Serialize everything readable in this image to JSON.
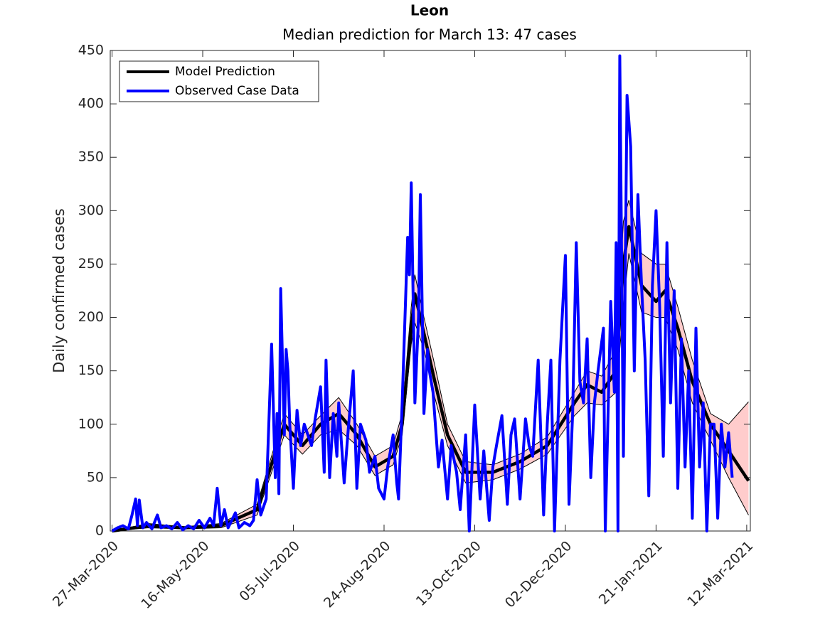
{
  "chart_data": {
    "type": "line",
    "title": "Leon",
    "subtitle": "Median prediction for March 13: 47 cases",
    "ylabel": "Daily confirmed cases",
    "xlim": [
      "2020-03-26",
      "2021-03-14"
    ],
    "xticks": [
      {
        "value": "2020-03-27",
        "label": "27-Mar-2020"
      },
      {
        "value": "2020-05-16",
        "label": "16-May-2020"
      },
      {
        "value": "2020-07-05",
        "label": "05-Jul-2020"
      },
      {
        "value": "2020-08-24",
        "label": "24-Aug-2020"
      },
      {
        "value": "2020-10-13",
        "label": "13-Oct-2020"
      },
      {
        "value": "2020-12-02",
        "label": "02-Dec-2020"
      },
      {
        "value": "2021-01-21",
        "label": "21-Jan-2021"
      },
      {
        "value": "2021-03-12",
        "label": "12-Mar-2021"
      }
    ],
    "ylim": [
      0,
      450
    ],
    "yticks": [
      0,
      50,
      100,
      150,
      200,
      250,
      300,
      350,
      400,
      450
    ],
    "legend": "upper left",
    "band_color": "#ffcccc",
    "series": [
      {
        "name": "Model Prediction",
        "color": "#000000",
        "x": [
          "2020-03-27",
          "2020-04-16",
          "2020-05-06",
          "2020-05-26",
          "2020-06-15",
          "2020-06-30",
          "2020-07-10",
          "2020-07-20",
          "2020-07-30",
          "2020-08-09",
          "2020-08-19",
          "2020-08-29",
          "2020-09-03",
          "2020-09-08",
          "2020-09-10",
          "2020-09-15",
          "2020-09-21",
          "2020-09-28",
          "2020-10-08",
          "2020-10-23",
          "2020-11-07",
          "2020-11-22",
          "2020-12-07",
          "2020-12-14",
          "2020-12-22",
          "2020-12-30",
          "2021-01-03",
          "2021-01-06",
          "2021-01-13",
          "2021-01-21",
          "2021-01-26",
          "2021-02-02",
          "2021-02-10",
          "2021-02-20",
          "2021-03-02",
          "2021-03-13"
        ],
        "values": [
          0,
          5,
          3,
          5,
          20,
          100,
          80,
          100,
          110,
          90,
          60,
          70,
          100,
          190,
          222,
          185,
          140,
          90,
          55,
          55,
          65,
          80,
          120,
          137,
          130,
          150,
          250,
          285,
          230,
          215,
          225,
          190,
          140,
          100,
          75,
          47
        ],
        "upper": [
          0,
          7,
          4,
          7,
          25,
          110,
          90,
          108,
          125,
          100,
          70,
          80,
          110,
          210,
          240,
          200,
          155,
          100,
          65,
          62,
          72,
          88,
          130,
          150,
          145,
          170,
          290,
          310,
          260,
          250,
          250,
          210,
          160,
          110,
          100,
          121
        ],
        "lower": [
          0,
          3,
          2,
          3,
          15,
          90,
          72,
          90,
          95,
          80,
          52,
          62,
          90,
          175,
          195,
          170,
          125,
          80,
          45,
          48,
          58,
          72,
          108,
          120,
          118,
          130,
          210,
          260,
          205,
          200,
          200,
          170,
          120,
          85,
          50,
          15
        ]
      },
      {
        "name": "Observed Case Data",
        "color": "#0000ff",
        "x": [
          "2020-03-27",
          "2020-03-30",
          "2020-04-02",
          "2020-04-05",
          "2020-04-07",
          "2020-04-09",
          "2020-04-10",
          "2020-04-11",
          "2020-04-13",
          "2020-04-15",
          "2020-04-18",
          "2020-04-21",
          "2020-04-23",
          "2020-04-26",
          "2020-04-29",
          "2020-05-02",
          "2020-05-05",
          "2020-05-08",
          "2020-05-11",
          "2020-05-14",
          "2020-05-17",
          "2020-05-20",
          "2020-05-22",
          "2020-05-24",
          "2020-05-26",
          "2020-05-28",
          "2020-05-30",
          "2020-06-01",
          "2020-06-03",
          "2020-06-05",
          "2020-06-08",
          "2020-06-11",
          "2020-06-13",
          "2020-06-15",
          "2020-06-17",
          "2020-06-20",
          "2020-06-23",
          "2020-06-25",
          "2020-06-26",
          "2020-06-27",
          "2020-06-28",
          "2020-06-30",
          "2020-07-01",
          "2020-07-02",
          "2020-07-03",
          "2020-07-05",
          "2020-07-07",
          "2020-07-09",
          "2020-07-11",
          "2020-07-13",
          "2020-07-15",
          "2020-07-17",
          "2020-07-20",
          "2020-07-22",
          "2020-07-23",
          "2020-07-25",
          "2020-07-27",
          "2020-07-29",
          "2020-07-30",
          "2020-08-02",
          "2020-08-04",
          "2020-08-07",
          "2020-08-09",
          "2020-08-11",
          "2020-08-14",
          "2020-08-16",
          "2020-08-19",
          "2020-08-21",
          "2020-08-24",
          "2020-08-26",
          "2020-08-29",
          "2020-08-31",
          "2020-09-01",
          "2020-09-03",
          "2020-09-06",
          "2020-09-07",
          "2020-09-08",
          "2020-09-10",
          "2020-09-12",
          "2020-09-13",
          "2020-09-15",
          "2020-09-17",
          "2020-09-18",
          "2020-09-20",
          "2020-09-23",
          "2020-09-25",
          "2020-09-28",
          "2020-09-30",
          "2020-10-03",
          "2020-10-05",
          "2020-10-08",
          "2020-10-10",
          "2020-10-13",
          "2020-10-16",
          "2020-10-18",
          "2020-10-21",
          "2020-10-23",
          "2020-10-25",
          "2020-10-28",
          "2020-10-31",
          "2020-11-02",
          "2020-11-04",
          "2020-11-07",
          "2020-11-10",
          "2020-11-12",
          "2020-11-14",
          "2020-11-17",
          "2020-11-20",
          "2020-11-22",
          "2020-11-24",
          "2020-11-26",
          "2020-11-29",
          "2020-12-02",
          "2020-12-04",
          "2020-12-06",
          "2020-12-08",
          "2020-12-10",
          "2020-12-12",
          "2020-12-14",
          "2020-12-16",
          "2020-12-18",
          "2020-12-20",
          "2020-12-23",
          "2020-12-24",
          "2020-12-27",
          "2020-12-29",
          "2020-12-30",
          "2020-12-31",
          "2021-01-01",
          "2021-01-03",
          "2021-01-05",
          "2021-01-07",
          "2021-01-09",
          "2021-01-11",
          "2021-01-13",
          "2021-01-15",
          "2021-01-17",
          "2021-01-19",
          "2021-01-21",
          "2021-01-23",
          "2021-01-25",
          "2021-01-27",
          "2021-01-29",
          "2021-01-31",
          "2021-02-02",
          "2021-02-04",
          "2021-02-06",
          "2021-02-08",
          "2021-02-10",
          "2021-02-12",
          "2021-02-14",
          "2021-02-16",
          "2021-02-18",
          "2021-02-20",
          "2021-02-22",
          "2021-02-24",
          "2021-02-26",
          "2021-02-28",
          "2021-03-02",
          "2021-03-04"
        ],
        "values": [
          0,
          3,
          5,
          2,
          15,
          30,
          5,
          29,
          3,
          8,
          2,
          15,
          3,
          5,
          2,
          8,
          1,
          5,
          2,
          10,
          3,
          12,
          5,
          40,
          5,
          20,
          3,
          10,
          17,
          3,
          8,
          5,
          10,
          48,
          15,
          30,
          175,
          50,
          110,
          35,
          227,
          90,
          170,
          150,
          100,
          40,
          113,
          80,
          100,
          90,
          80,
          105,
          135,
          55,
          160,
          50,
          110,
          70,
          120,
          45,
          90,
          150,
          40,
          100,
          85,
          55,
          70,
          40,
          30,
          60,
          90,
          45,
          30,
          120,
          275,
          240,
          326,
          120,
          200,
          315,
          110,
          170,
          150,
          130,
          60,
          85,
          30,
          80,
          55,
          20,
          90,
          0,
          118,
          30,
          75,
          10,
          60,
          80,
          108,
          25,
          90,
          105,
          30,
          105,
          80,
          70,
          160,
          15,
          100,
          160,
          0,
          160,
          258,
          25,
          110,
          270,
          140,
          120,
          180,
          50,
          120,
          150,
          190,
          0,
          215,
          130,
          270,
          0,
          445,
          70,
          408,
          360,
          150,
          315,
          230,
          160,
          33,
          230,
          300,
          210,
          70,
          270,
          120,
          225,
          40,
          180,
          60,
          150,
          12,
          190,
          60,
          120,
          0,
          100,
          100,
          12,
          100,
          60,
          92,
          50
        ]
      }
    ]
  }
}
